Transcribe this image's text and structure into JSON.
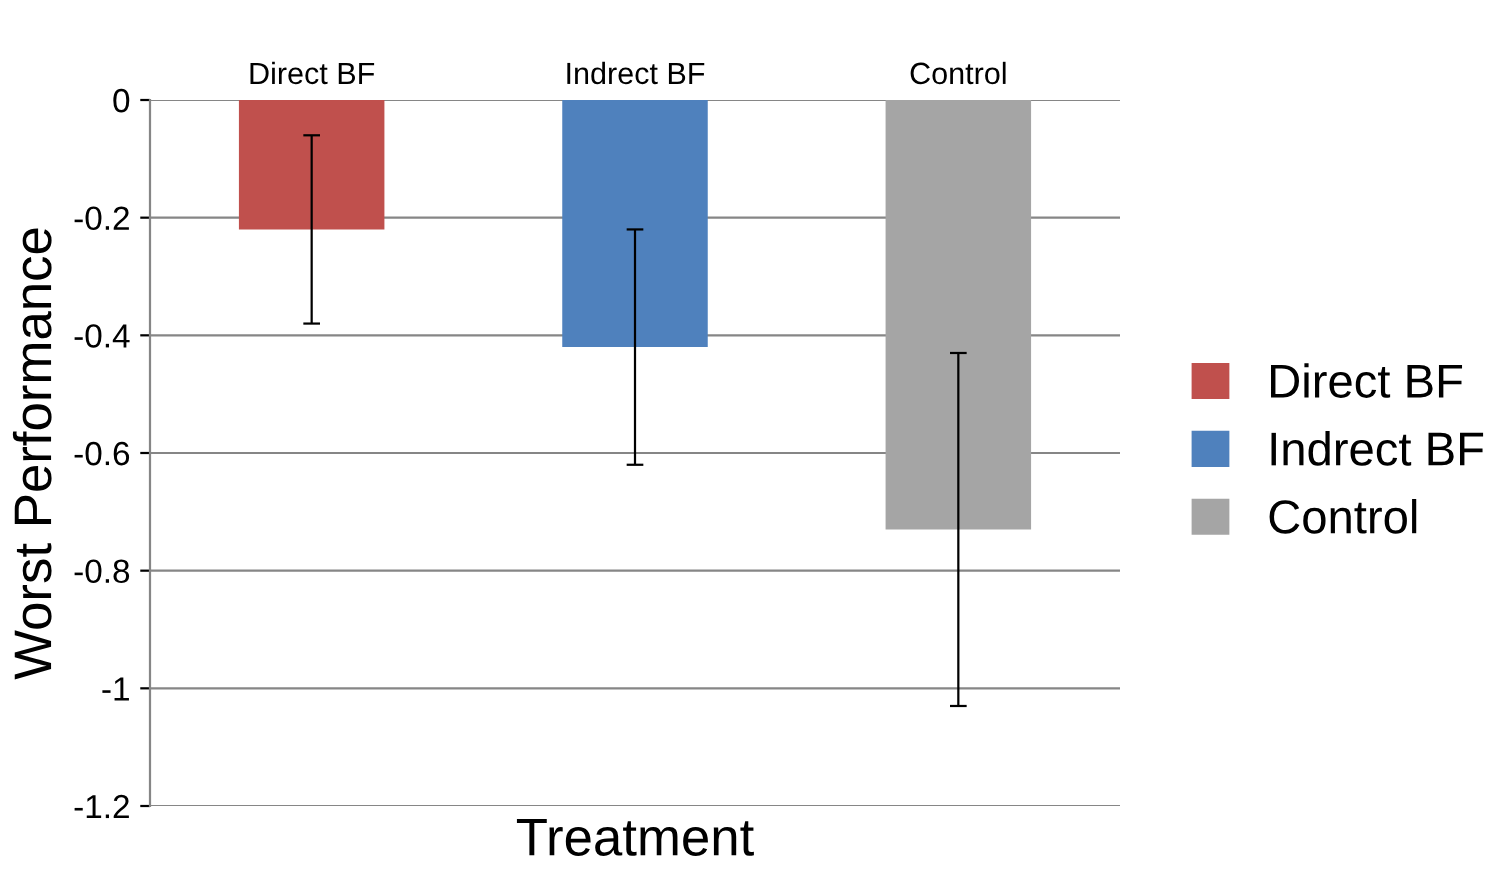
{
  "chart_data": {
    "type": "bar",
    "xlabel": "Treatment",
    "ylabel": "Worst Performance",
    "categories": [
      "Direct BF",
      "Indrect BF",
      "Control"
    ],
    "series": [
      {
        "name": "Direct BF",
        "color": "#c0504d",
        "values": [
          -0.22,
          null,
          null
        ],
        "errors": [
          0.16,
          null,
          null
        ]
      },
      {
        "name": "Indrect BF",
        "color": "#4f81bd",
        "values": [
          null,
          -0.42,
          null
        ],
        "errors": [
          null,
          0.2,
          null
        ]
      },
      {
        "name": "Control",
        "color": "#a5a5a5",
        "values": [
          null,
          null,
          -0.73
        ],
        "errors": [
          null,
          null,
          0.3
        ]
      }
    ],
    "ylim": [
      -1.2,
      0
    ],
    "yticks": [
      0,
      -0.2,
      -0.4,
      -0.6,
      -0.8,
      -1,
      -1.2
    ],
    "grid": "y",
    "legend": "right"
  }
}
